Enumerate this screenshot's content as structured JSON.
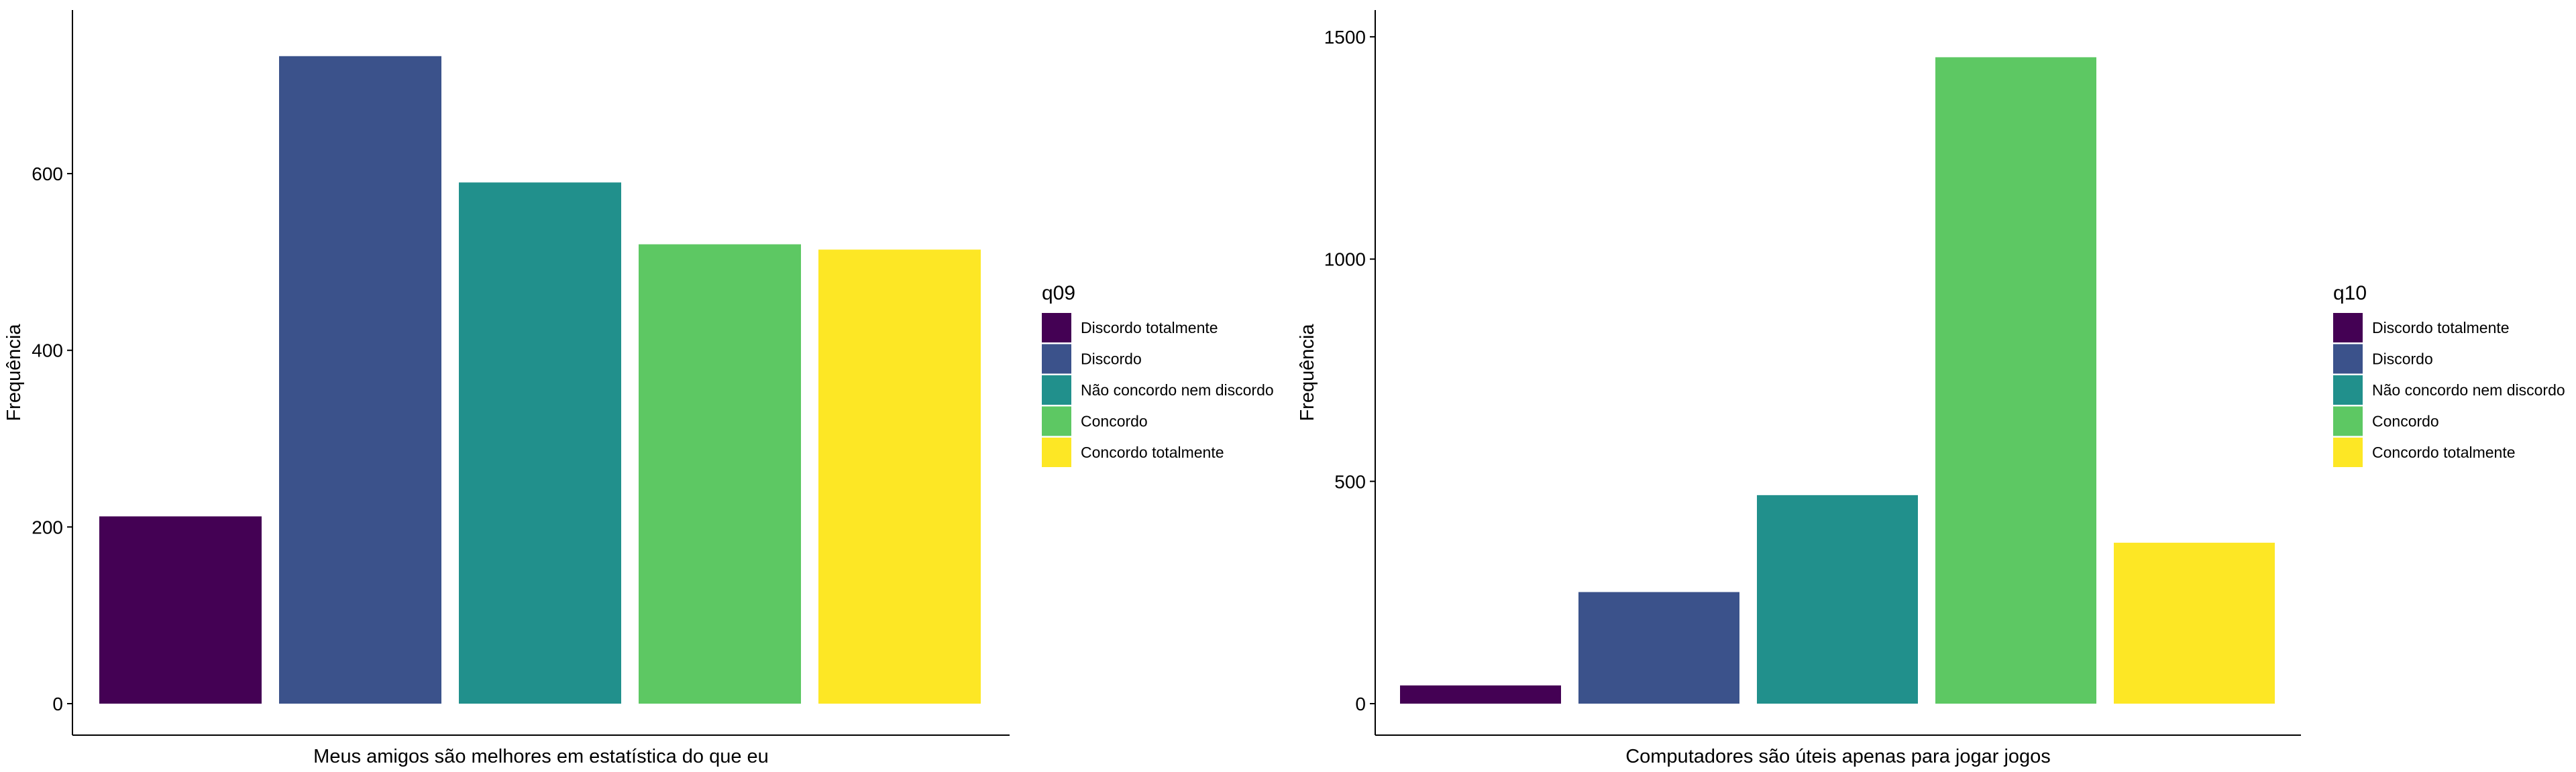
{
  "chart_data": [
    {
      "type": "bar",
      "xlabel": "Meus amigos são melhores em estatística do que eu",
      "ylabel": "Frequência",
      "ylim": [
        0,
        770
      ],
      "yticks": [
        0,
        200,
        400,
        600
      ],
      "categories": [
        "Discordo totalmente",
        "Discordo",
        "Não concordo nem discordo",
        "Concordo",
        "Concordo totalmente"
      ],
      "values": [
        212,
        733,
        590,
        520,
        514
      ],
      "colors": [
        "#440154",
        "#3B528B",
        "#21908C",
        "#5DC863",
        "#FDE725"
      ],
      "legend": {
        "title": "q09",
        "placement": "right",
        "entries": [
          "Discordo totalmente",
          "Discordo",
          "Não concordo nem discordo",
          "Concordo",
          "Concordo totalmente"
        ]
      },
      "grid": false
    },
    {
      "type": "bar",
      "xlabel": "Computadores são úteis apenas para jogar jogos",
      "ylabel": "Frequência",
      "ylim": [
        0,
        1530
      ],
      "yticks": [
        0,
        500,
        1000,
        1500
      ],
      "categories": [
        "Discordo totalmente",
        "Discordo",
        "Não concordo nem discordo",
        "Concordo",
        "Concordo totalmente"
      ],
      "values": [
        41,
        251,
        469,
        1454,
        362
      ],
      "colors": [
        "#440154",
        "#3B528B",
        "#21908C",
        "#5DC863",
        "#FDE725"
      ],
      "legend": {
        "title": "q10",
        "placement": "right",
        "entries": [
          "Discordo totalmente",
          "Discordo",
          "Não concordo nem discordo",
          "Concordo",
          "Concordo totalmente"
        ]
      },
      "grid": false
    }
  ]
}
